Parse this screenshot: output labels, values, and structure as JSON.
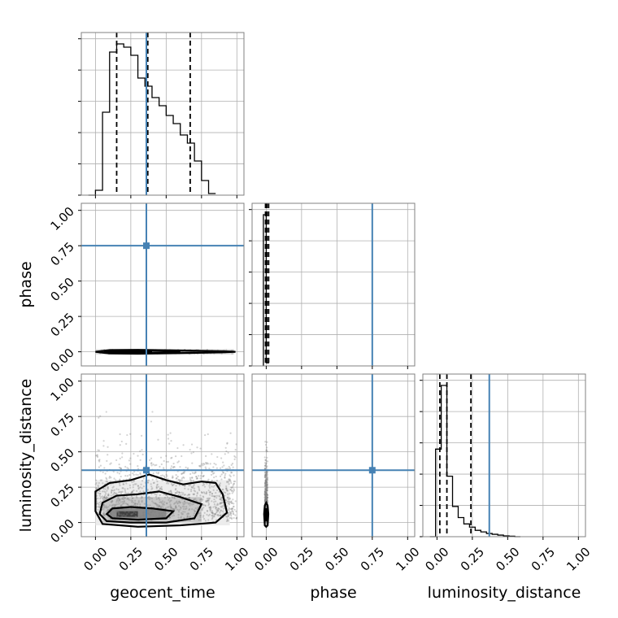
{
  "chart_data": {
    "type": "corner",
    "parameters": [
      "geocent_time",
      "phase",
      "luminosity_distance"
    ],
    "tick_labels": [
      "0.00",
      "0.25",
      "0.50",
      "0.75",
      "1.00"
    ],
    "axis_range": [
      -0.1,
      1.05
    ],
    "truth_color": "#4682b4",
    "truths": {
      "geocent_time": 0.36,
      "phase": 0.75,
      "luminosity_distance": 0.37
    },
    "histograms": {
      "geocent_time": {
        "bin_width": 0.05,
        "bins_start": -0.05,
        "counts": [
          0.0,
          0.03,
          0.51,
          0.88,
          0.93,
          0.91,
          0.86,
          0.72,
          0.67,
          0.6,
          0.55,
          0.49,
          0.44,
          0.37,
          0.32,
          0.21,
          0.09,
          0.01
        ],
        "quantiles": [
          0.15,
          0.37,
          0.67
        ]
      },
      "phase": {
        "bin_width": 0.02,
        "bins_start": -0.02,
        "counts": [
          1.0,
          0.02
        ],
        "quantiles": [
          -0.005,
          0.005,
          0.017
        ]
      },
      "luminosity_distance": {
        "bin_width": 0.04,
        "bins_start": -0.05,
        "counts": [
          0.0,
          0.55,
          0.95,
          0.38,
          0.19,
          0.12,
          0.08,
          0.06,
          0.04,
          0.03,
          0.02,
          0.015,
          0.01,
          0.005,
          0.003,
          0.0
        ],
        "quantiles": [
          0.02,
          0.07,
          0.24
        ]
      }
    },
    "scatter_2d": {
      "geocent_time_vs_phase": {
        "x_range": [
          0.0,
          1.0
        ],
        "y_center": 0.0,
        "y_halfwidth": 0.02
      },
      "geocent_time_vs_luminosity_distance": {
        "x_range": [
          0.0,
          1.0
        ],
        "y_center": 0.07,
        "y_spread": 0.45
      },
      "phase_vs_luminosity_distance": {
        "x_center": 0.0,
        "x_halfwidth": 0.015,
        "y_range": [
          0.0,
          0.6
        ]
      }
    }
  }
}
